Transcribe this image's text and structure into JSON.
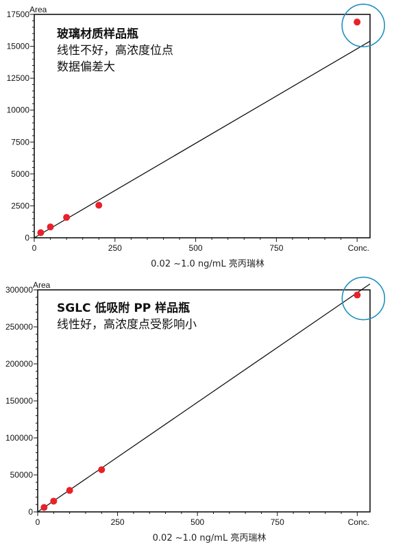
{
  "chart_data": [
    {
      "type": "scatter",
      "ylabel": "Area",
      "xlabel": "0.02 ~1.0 ng/mL 亮丙瑞林",
      "x_end_label": "Conc.",
      "annotation_lines": [
        "玻璃材质样品瓶",
        "线性不好，高浓度位点",
        "数据偏差大"
      ],
      "xlim": [
        0,
        1040
      ],
      "ylim": [
        0,
        17500
      ],
      "xticks": [
        0,
        250,
        500,
        750
      ],
      "xtick_labels": [
        "0",
        "250",
        "500",
        "750"
      ],
      "yticks": [
        0,
        2500,
        5000,
        7500,
        10000,
        12500,
        15000,
        17500
      ],
      "ytick_labels": [
        "0",
        "2500",
        "5000",
        "7500",
        "10000",
        "12500",
        "15000",
        "17500"
      ],
      "points": [
        {
          "x": 20,
          "y": 400
        },
        {
          "x": 50,
          "y": 850
        },
        {
          "x": 100,
          "y": 1600
        },
        {
          "x": 200,
          "y": 2550
        },
        {
          "x": 1000,
          "y": 16900
        }
      ],
      "fit_line": {
        "x": [
          0,
          1040
        ],
        "y": [
          0,
          15400
        ]
      },
      "highlight_point_index": 4,
      "point_color": "#e8212b",
      "circle_color": "#1f8fc0"
    },
    {
      "type": "scatter",
      "ylabel": "Area",
      "xlabel": "0.02 ~1.0 ng/mL 亮丙瑞林",
      "x_end_label": "Conc.",
      "annotation_lines": [
        "SGLC 低吸附 PP 样品瓶",
        "线性好，高浓度点受影响小"
      ],
      "xlim": [
        0,
        1040
      ],
      "ylim": [
        0,
        300000
      ],
      "xticks": [
        0,
        250,
        500,
        750
      ],
      "xtick_labels": [
        "0",
        "250",
        "500",
        "750"
      ],
      "yticks": [
        0,
        50000,
        100000,
        150000,
        200000,
        250000,
        300000
      ],
      "ytick_labels": [
        "0",
        "50000",
        "100000",
        "150000",
        "200000",
        "250000",
        "300000"
      ],
      "points": [
        {
          "x": 20,
          "y": 6000
        },
        {
          "x": 50,
          "y": 14500
        },
        {
          "x": 100,
          "y": 29000
        },
        {
          "x": 200,
          "y": 57000
        },
        {
          "x": 1000,
          "y": 293000
        }
      ],
      "fit_line": {
        "x": [
          0,
          1040
        ],
        "y": [
          0,
          308000
        ]
      },
      "highlight_point_index": 4,
      "point_color": "#e8212b",
      "circle_color": "#1f8fc0"
    }
  ]
}
